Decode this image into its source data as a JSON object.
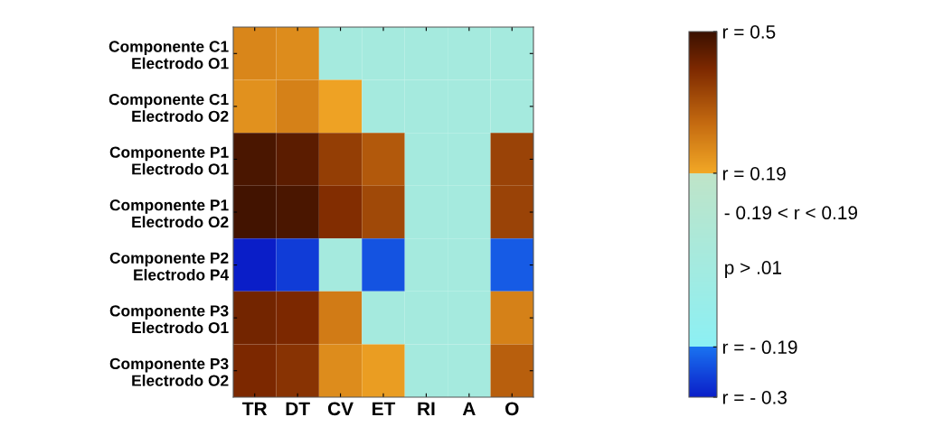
{
  "chart_data": {
    "type": "heatmap",
    "categories": [
      "TR",
      "DT",
      "CV",
      "ET",
      "RI",
      "A",
      "O"
    ],
    "y_categories": [
      "Componente C1\nElectrodo O1",
      "Componente C1\nElectrodo O2",
      "Componente P1\nElectrodo O1",
      "Componente P1\nElectrodo O2",
      "Componente P2\nElectrodo P4",
      "Componente P3\nElectrodo O1",
      "Componente P3\nElectrodo O2"
    ],
    "cells": [
      [
        0.25,
        0.24,
        0,
        0,
        0,
        0,
        0
      ],
      [
        0.23,
        0.26,
        0.2,
        0,
        0,
        0,
        0
      ],
      [
        0.48,
        0.46,
        0.38,
        0.33,
        0,
        0,
        0.37
      ],
      [
        0.49,
        0.48,
        0.41,
        0.36,
        0,
        0,
        0.37
      ],
      [
        -0.3,
        -0.26,
        0,
        -0.23,
        0,
        0,
        -0.22
      ],
      [
        0.43,
        0.42,
        0.27,
        0,
        0,
        0,
        0.26
      ],
      [
        0.42,
        0.4,
        0.24,
        0.21,
        0,
        0,
        0.32
      ]
    ],
    "clim": [
      -0.3,
      0.5
    ],
    "cticks": [
      {
        "value": 0.5,
        "label": "r = 0.5"
      },
      {
        "value": 0.19,
        "label": "r = 0.19"
      },
      {
        "value": -0.19,
        "label": "r = - 0.19"
      },
      {
        "value": -0.3,
        "label": "r = - 0.3"
      }
    ],
    "annotations": [
      "- 0.19 < r < 0.19",
      "p > .01"
    ]
  }
}
